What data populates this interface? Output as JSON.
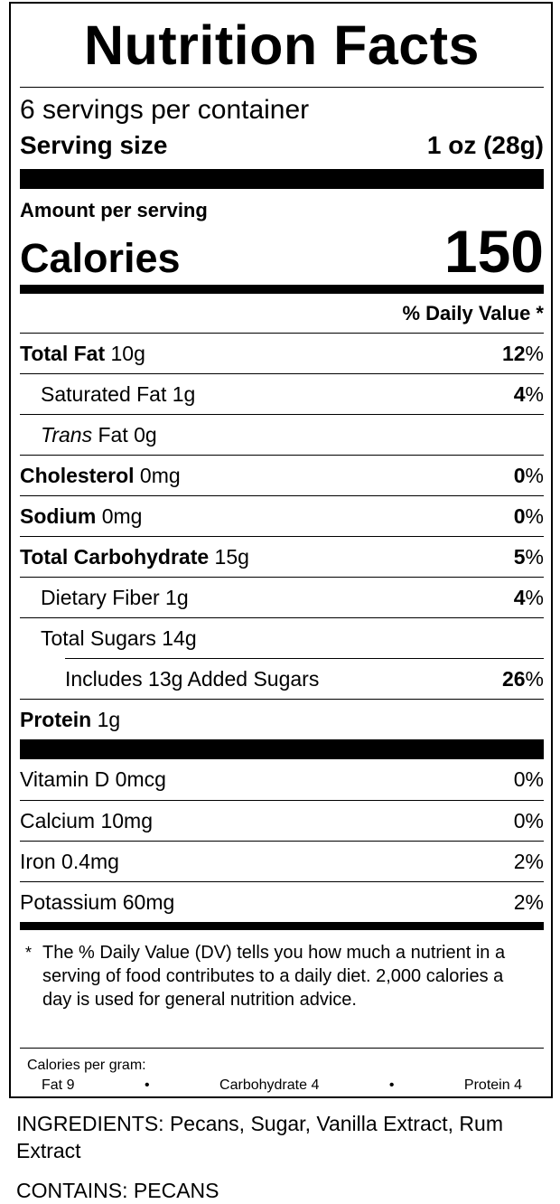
{
  "header": {
    "title": "Nutrition Facts",
    "servings": "6 servings per container",
    "serving_size_label": "Serving size",
    "serving_size": "1 oz (28g)"
  },
  "calories": {
    "amount_label": "Amount per serving",
    "label": "Calories",
    "value": 150
  },
  "dv_header": "% Daily Value *",
  "nutrients": [
    {
      "name": "Total Fat",
      "amount": "10g",
      "dv": "12",
      "dv_unit": "%",
      "sub": [
        {
          "name": "Saturated Fat",
          "amount": "1g",
          "dv": "4",
          "dv_unit": "%"
        },
        {
          "name_italic": "Trans",
          "name": "Fat",
          "amount": "0g"
        }
      ]
    },
    {
      "name": "Cholesterol",
      "amount": "0mg",
      "dv": "0",
      "dv_unit": "%"
    },
    {
      "name": "Sodium",
      "amount": "0mg",
      "dv": "0",
      "dv_unit": "%"
    },
    {
      "name": "Total Carbohydrate",
      "amount": "15g",
      "dv": "5",
      "dv_unit": "%",
      "sub": [
        {
          "name": "Dietary Fiber",
          "amount": "1g",
          "dv": "4",
          "dv_unit": "%"
        },
        {
          "name": "Total Sugars",
          "amount": "14g",
          "sub": [
            {
              "name": "Includes 13g Added Sugars",
              "dv": "26",
              "dv_unit": "%"
            }
          ]
        }
      ]
    },
    {
      "name": "Protein",
      "amount": "1g"
    }
  ],
  "vitamins": [
    {
      "name": "Vitamin D",
      "amount": "0mcg",
      "dv": "0%"
    },
    {
      "name": "Calcium",
      "amount": "10mg",
      "dv": "0%"
    },
    {
      "name": "Iron",
      "amount": "0.4mg",
      "dv": "2%"
    },
    {
      "name": "Potassium",
      "amount": "60mg",
      "dv": "2%"
    }
  ],
  "footnote": {
    "marker": "*",
    "text": "The % Daily Value (DV) tells you how much a nutrient in a serving of food contributes to a daily diet. 2,000 calories a day is used for general nutrition advice."
  },
  "calories_per_gram": {
    "label": "Calories per gram:",
    "items": [
      "Fat 9",
      "Carbohydrate 4",
      "Protein 4"
    ],
    "separator": "•"
  },
  "ingredients": "INGREDIENTS: Pecans, Sugar, Vanilla Extract, Rum Extract",
  "contains": "CONTAINS: PECANS"
}
